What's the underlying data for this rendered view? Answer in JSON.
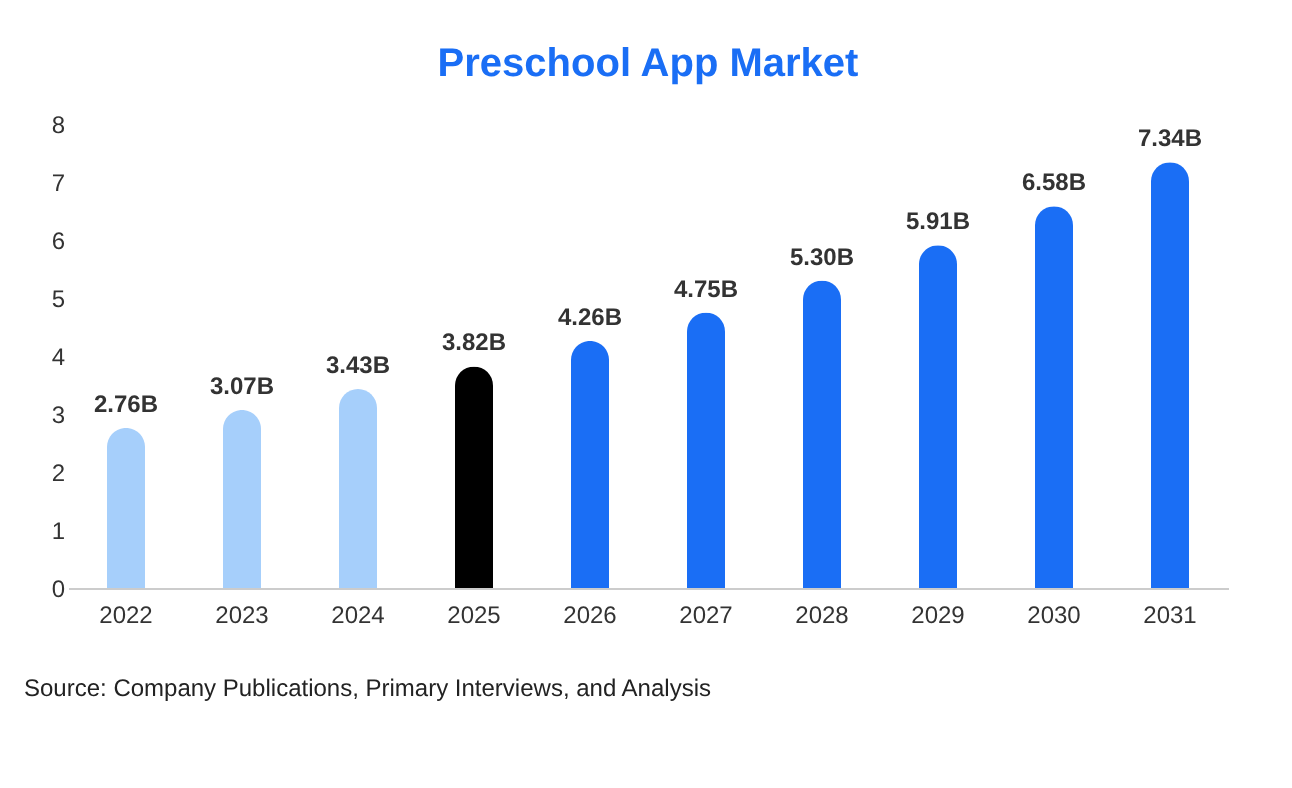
{
  "chart_data": {
    "type": "bar",
    "title": "Preschool App Market",
    "categories": [
      "2022",
      "2023",
      "2024",
      "2025",
      "2026",
      "2027",
      "2028",
      "2029",
      "2030",
      "2031"
    ],
    "values": [
      2.76,
      3.07,
      3.43,
      3.82,
      4.26,
      4.75,
      5.3,
      5.91,
      6.58,
      7.34
    ],
    "value_labels": [
      "2.76B",
      "3.07B",
      "3.43B",
      "3.82B",
      "4.26B",
      "4.75B",
      "5.30B",
      "5.91B",
      "6.58B",
      "7.34B"
    ],
    "colors": [
      "#a6cffb",
      "#a6cffb",
      "#a6cffb",
      "#000000",
      "#1a6ef5",
      "#1a6ef5",
      "#1a6ef5",
      "#1a6ef5",
      "#1a6ef5",
      "#1a6ef5"
    ],
    "ylim": [
      0,
      8
    ],
    "yticks": [
      0,
      1,
      2,
      3,
      4,
      5,
      6,
      7,
      8
    ],
    "grid": false,
    "annotations": [
      "Source: Company Publications, Primary Interviews, and Analysis"
    ]
  }
}
